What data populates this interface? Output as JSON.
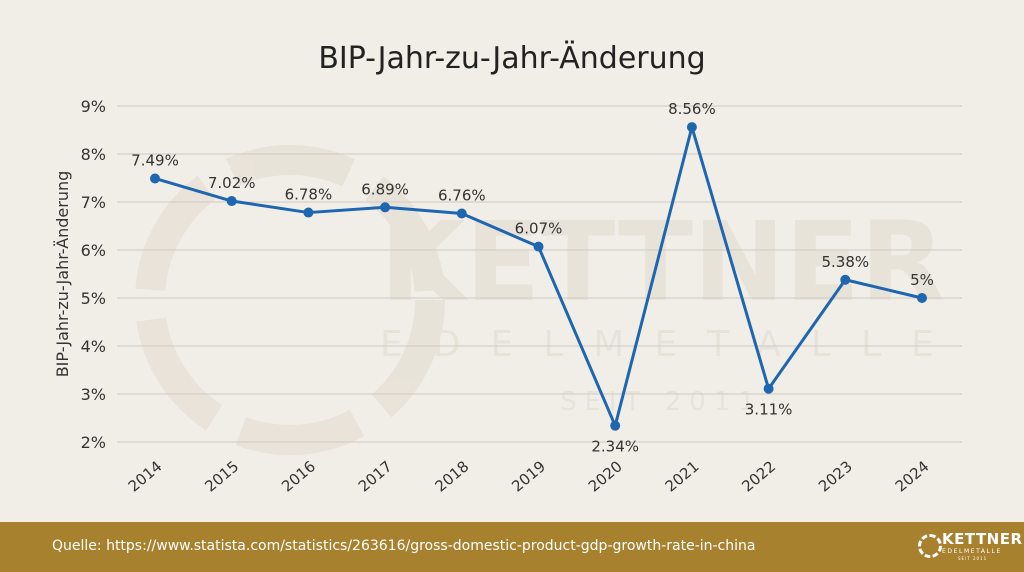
{
  "chart_data": {
    "type": "line",
    "title": "BIP-Jahr-zu-Jahr-Änderung",
    "xlabel": "",
    "ylabel": "BIP-Jahr-zu-Jahr-Änderung",
    "categories": [
      "2014",
      "2015",
      "2016",
      "2017",
      "2018",
      "2019",
      "2020",
      "2021",
      "2022",
      "2023",
      "2024"
    ],
    "values": [
      7.49,
      7.02,
      6.78,
      6.89,
      6.76,
      6.07,
      2.34,
      8.56,
      3.11,
      5.38,
      5
    ],
    "data_labels": [
      "7.49%",
      "7.02%",
      "6.78%",
      "6.89%",
      "6.76%",
      "6.07%",
      "2.34%",
      "8.56%",
      "3.11%",
      "5.38%",
      "5%"
    ],
    "ylim": [
      2,
      9
    ],
    "yticks": [
      "2%",
      "3%",
      "4%",
      "5%",
      "6%",
      "7%",
      "8%",
      "9%"
    ],
    "grid": true,
    "line_color": "#1f66b0"
  },
  "watermark": {
    "name": "KETTNER",
    "sub": "EDELMETALLE",
    "since": "SEIT 2011"
  },
  "footer": {
    "source": "Quelle: https://www.statista.com/statistics/263616/gross-domestic-product-gdp-growth-rate-in-china",
    "logo": {
      "name": "KETTNER",
      "sub": "EDELMETALLE",
      "since": "SEIT 2011"
    },
    "background": "#a8812f"
  }
}
